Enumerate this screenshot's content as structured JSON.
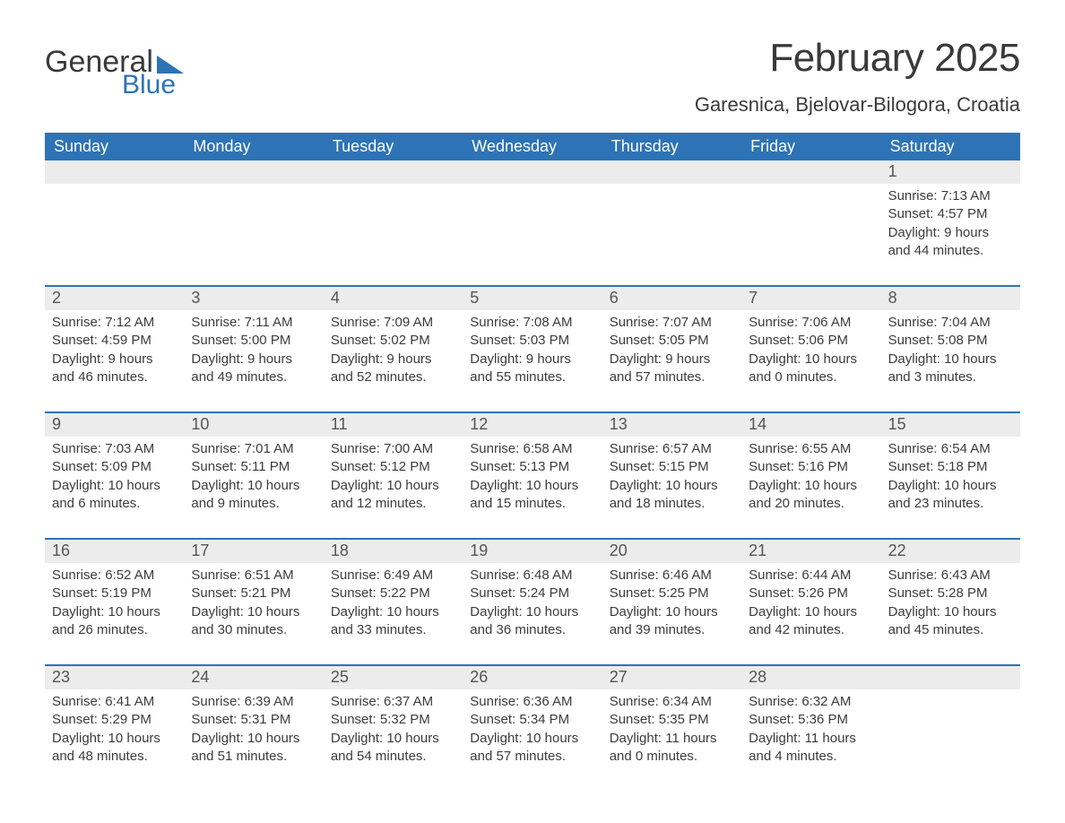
{
  "logo": {
    "word1": "General",
    "word2": "Blue"
  },
  "title": "February 2025",
  "location": "Garesnica, Bjelovar-Bilogora, Croatia",
  "colors": {
    "brand_blue": "#2d73b6",
    "header_text": "#3a3a3a",
    "body_text": "#3c3c3c",
    "strip_bg": "#ececec",
    "page_bg": "#ffffff"
  },
  "days_of_week": [
    "Sunday",
    "Monday",
    "Tuesday",
    "Wednesday",
    "Thursday",
    "Friday",
    "Saturday"
  ],
  "weeks": [
    [
      null,
      null,
      null,
      null,
      null,
      null,
      {
        "n": "1",
        "sunrise": "7:13 AM",
        "sunset": "4:57 PM",
        "dl": "9 hours and 44 minutes."
      }
    ],
    [
      {
        "n": "2",
        "sunrise": "7:12 AM",
        "sunset": "4:59 PM",
        "dl": "9 hours and 46 minutes."
      },
      {
        "n": "3",
        "sunrise": "7:11 AM",
        "sunset": "5:00 PM",
        "dl": "9 hours and 49 minutes."
      },
      {
        "n": "4",
        "sunrise": "7:09 AM",
        "sunset": "5:02 PM",
        "dl": "9 hours and 52 minutes."
      },
      {
        "n": "5",
        "sunrise": "7:08 AM",
        "sunset": "5:03 PM",
        "dl": "9 hours and 55 minutes."
      },
      {
        "n": "6",
        "sunrise": "7:07 AM",
        "sunset": "5:05 PM",
        "dl": "9 hours and 57 minutes."
      },
      {
        "n": "7",
        "sunrise": "7:06 AM",
        "sunset": "5:06 PM",
        "dl": "10 hours and 0 minutes."
      },
      {
        "n": "8",
        "sunrise": "7:04 AM",
        "sunset": "5:08 PM",
        "dl": "10 hours and 3 minutes."
      }
    ],
    [
      {
        "n": "9",
        "sunrise": "7:03 AM",
        "sunset": "5:09 PM",
        "dl": "10 hours and 6 minutes."
      },
      {
        "n": "10",
        "sunrise": "7:01 AM",
        "sunset": "5:11 PM",
        "dl": "10 hours and 9 minutes."
      },
      {
        "n": "11",
        "sunrise": "7:00 AM",
        "sunset": "5:12 PM",
        "dl": "10 hours and 12 minutes."
      },
      {
        "n": "12",
        "sunrise": "6:58 AM",
        "sunset": "5:13 PM",
        "dl": "10 hours and 15 minutes."
      },
      {
        "n": "13",
        "sunrise": "6:57 AM",
        "sunset": "5:15 PM",
        "dl": "10 hours and 18 minutes."
      },
      {
        "n": "14",
        "sunrise": "6:55 AM",
        "sunset": "5:16 PM",
        "dl": "10 hours and 20 minutes."
      },
      {
        "n": "15",
        "sunrise": "6:54 AM",
        "sunset": "5:18 PM",
        "dl": "10 hours and 23 minutes."
      }
    ],
    [
      {
        "n": "16",
        "sunrise": "6:52 AM",
        "sunset": "5:19 PM",
        "dl": "10 hours and 26 minutes."
      },
      {
        "n": "17",
        "sunrise": "6:51 AM",
        "sunset": "5:21 PM",
        "dl": "10 hours and 30 minutes."
      },
      {
        "n": "18",
        "sunrise": "6:49 AM",
        "sunset": "5:22 PM",
        "dl": "10 hours and 33 minutes."
      },
      {
        "n": "19",
        "sunrise": "6:48 AM",
        "sunset": "5:24 PM",
        "dl": "10 hours and 36 minutes."
      },
      {
        "n": "20",
        "sunrise": "6:46 AM",
        "sunset": "5:25 PM",
        "dl": "10 hours and 39 minutes."
      },
      {
        "n": "21",
        "sunrise": "6:44 AM",
        "sunset": "5:26 PM",
        "dl": "10 hours and 42 minutes."
      },
      {
        "n": "22",
        "sunrise": "6:43 AM",
        "sunset": "5:28 PM",
        "dl": "10 hours and 45 minutes."
      }
    ],
    [
      {
        "n": "23",
        "sunrise": "6:41 AM",
        "sunset": "5:29 PM",
        "dl": "10 hours and 48 minutes."
      },
      {
        "n": "24",
        "sunrise": "6:39 AM",
        "sunset": "5:31 PM",
        "dl": "10 hours and 51 minutes."
      },
      {
        "n": "25",
        "sunrise": "6:37 AM",
        "sunset": "5:32 PM",
        "dl": "10 hours and 54 minutes."
      },
      {
        "n": "26",
        "sunrise": "6:36 AM",
        "sunset": "5:34 PM",
        "dl": "10 hours and 57 minutes."
      },
      {
        "n": "27",
        "sunrise": "6:34 AM",
        "sunset": "5:35 PM",
        "dl": "11 hours and 0 minutes."
      },
      {
        "n": "28",
        "sunrise": "6:32 AM",
        "sunset": "5:36 PM",
        "dl": "11 hours and 4 minutes."
      },
      null
    ]
  ],
  "labels": {
    "sunrise": "Sunrise: ",
    "sunset": "Sunset: ",
    "daylight": "Daylight: "
  }
}
